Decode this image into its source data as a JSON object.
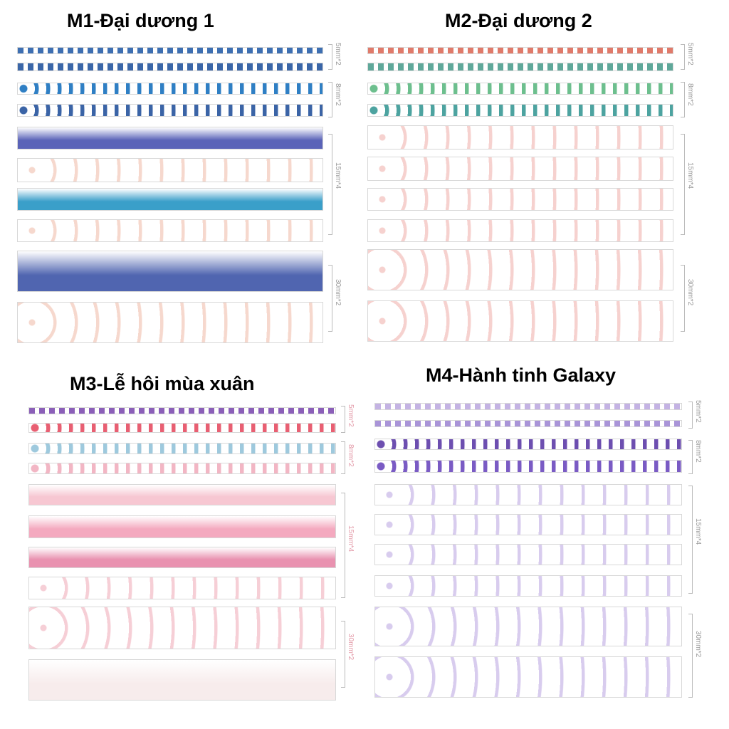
{
  "panels": [
    {
      "id": "m1",
      "title": "M1-Đại dương 1",
      "sizes": [
        "5mm*2",
        "8mm*2",
        "15mm*4",
        "30mm*2"
      ],
      "strip_colors": [
        "#3d6fb2",
        "#3a66a8",
        "#2f7fc4",
        "#3b64a6",
        "#5a63b8",
        "#ffffff",
        "#3a9fc9",
        "#ffffff",
        "#5065b0",
        "#ffffff"
      ],
      "accent": "#e58a6a"
    },
    {
      "id": "m2",
      "title": "M2-Đại dương 2",
      "sizes": [
        "5mm*2",
        "8mm*2",
        "15mm*4",
        "30mm*2"
      ],
      "strip_colors": [
        "#e07a6a",
        "#5fa89a",
        "#6dbf8e",
        "#4da3a0",
        "#ffffff",
        "#ffffff",
        "#ffffff",
        "#ffffff",
        "#ffffff",
        "#ffffff"
      ],
      "accent": "#e4766e"
    },
    {
      "id": "m3",
      "title": "M3-Lễ hôi mùa xuân",
      "sizes": [
        "5mm*2",
        "8mm*2",
        "15mm*4",
        "30mm*2"
      ],
      "strip_colors": [
        "#8b5fb8",
        "#e85f72",
        "#9ec9dd",
        "#f2b6c4",
        "#f7c7d2",
        "#f4a9bf",
        "#e992b0",
        "#ffffff",
        "#ffffff",
        "#f7ecec"
      ],
      "accent": "#e56e85"
    },
    {
      "id": "m4",
      "title": "M4-Hành tinh Galaxy",
      "sizes": [
        "5mm*2",
        "8mm*2",
        "15mm*4",
        "30mm*2"
      ],
      "strip_colors": [
        "#c4b3e3",
        "#a994d8",
        "#6d4fb0",
        "#7a5bc4",
        "#ffffff",
        "#ffffff",
        "#ffffff",
        "#ffffff",
        "#ffffff",
        "#ffffff"
      ],
      "accent": "#8a66cc"
    }
  ]
}
